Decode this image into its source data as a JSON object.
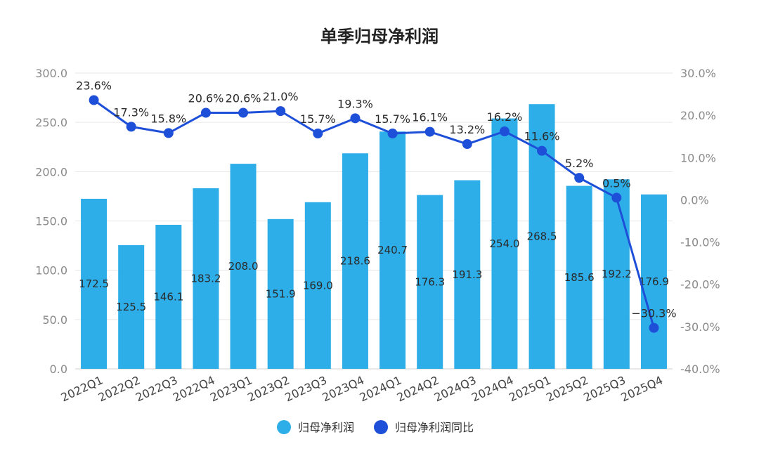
{
  "chart_data": {
    "type": "bar+line",
    "title": "单季归母净利润",
    "categories": [
      "2022Q1",
      "2022Q2",
      "2022Q3",
      "2022Q4",
      "2023Q1",
      "2023Q2",
      "2023Q3",
      "2023Q4",
      "2024Q1",
      "2024Q2",
      "2024Q3",
      "2024Q4",
      "2025Q1",
      "2025Q2",
      "2025Q3",
      "2025Q4"
    ],
    "series": [
      {
        "name": "归母净利润",
        "type": "bar",
        "axis": "left",
        "color": "#2eaee8",
        "values": [
          172.5,
          125.5,
          146.1,
          183.2,
          208.0,
          151.9,
          169.0,
          218.6,
          240.7,
          176.3,
          191.3,
          254.0,
          268.5,
          185.6,
          192.2,
          176.9
        ],
        "labels": [
          "172.5",
          "125.5",
          "146.1",
          "183.2",
          "208.0",
          "151.9",
          "169.0",
          "218.6",
          "240.7",
          "176.3",
          "191.3",
          "254.0",
          "268.5",
          "185.6",
          "192.2",
          "176.9"
        ]
      },
      {
        "name": "归母净利润同比",
        "type": "line",
        "axis": "right",
        "color": "#1e4fd8",
        "values": [
          23.6,
          17.3,
          15.8,
          20.6,
          20.6,
          21.0,
          15.7,
          19.3,
          15.7,
          16.1,
          13.2,
          16.2,
          11.6,
          5.2,
          0.5,
          -30.3
        ],
        "labels": [
          "23.6%",
          "17.3%",
          "15.8%",
          "20.6%",
          "20.6%",
          "21.0%",
          "15.7%",
          "19.3%",
          "15.7%",
          "16.1%",
          "13.2%",
          "16.2%",
          "11.6%",
          "5.2%",
          "0.5%",
          "−30.3%"
        ]
      }
    ],
    "left_axis": {
      "ylim": [
        0,
        300
      ],
      "ticks": [
        0,
        50,
        100,
        150,
        200,
        250,
        300
      ],
      "tick_labels": [
        "0.0",
        "50.0",
        "100.0",
        "150.0",
        "200.0",
        "250.0",
        "300.0"
      ]
    },
    "right_axis": {
      "ylim": [
        -40,
        30
      ],
      "ticks": [
        -40,
        -30,
        -20,
        -10,
        0,
        10,
        20,
        30
      ],
      "tick_labels": [
        "-40.0%",
        "-30.0%",
        "-20.0%",
        "-10.0%",
        "0.0%",
        "10.0%",
        "20.0%",
        "30.0%"
      ]
    },
    "grid": true,
    "legend_position": "bottom-center"
  }
}
